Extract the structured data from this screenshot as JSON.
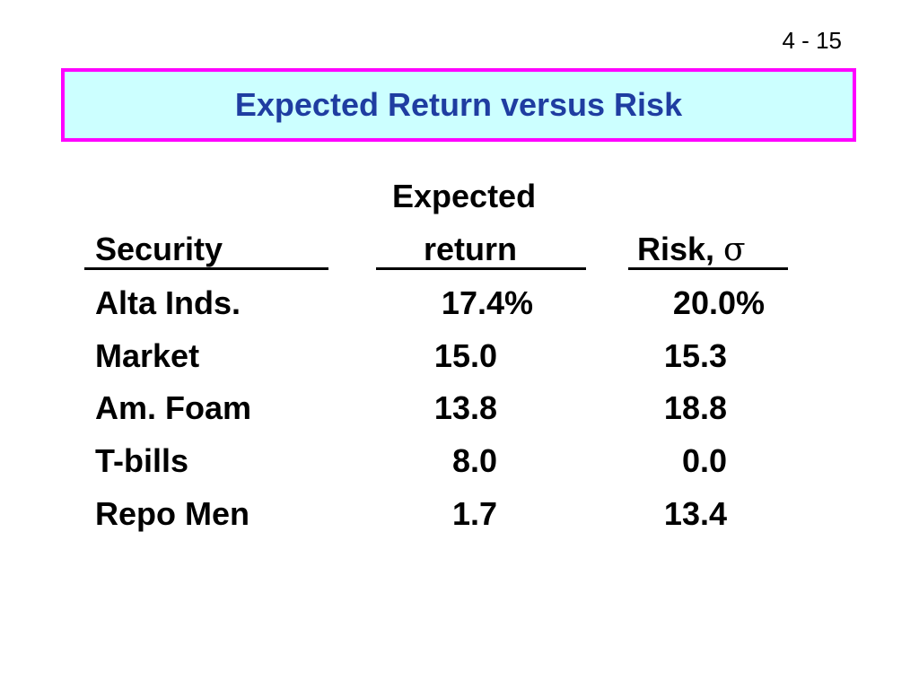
{
  "slide_number": "4 - 15",
  "title": "Expected Return versus Risk",
  "table": {
    "headers": {
      "security": "Security",
      "expected_line1": "Expected",
      "expected_line2": "return",
      "risk_prefix": "Risk, ",
      "risk_symbol": "σ"
    },
    "rows": [
      {
        "security": "Alta Inds.",
        "expected_return": "17.4%",
        "risk": "20.0%"
      },
      {
        "security": "Market",
        "expected_return": "15.0",
        "risk": "15.3"
      },
      {
        "security": "Am. Foam",
        "expected_return": "13.8",
        "risk": "18.8"
      },
      {
        "security": "T-bills",
        "expected_return": "8.0",
        "risk": "0.0"
      },
      {
        "security": "Repo Men",
        "expected_return": "1.7",
        "risk": "13.4"
      }
    ]
  },
  "colors": {
    "title_text": "#1f3da1",
    "title_bg": "#ccffff",
    "title_border": "#ff00ff"
  }
}
